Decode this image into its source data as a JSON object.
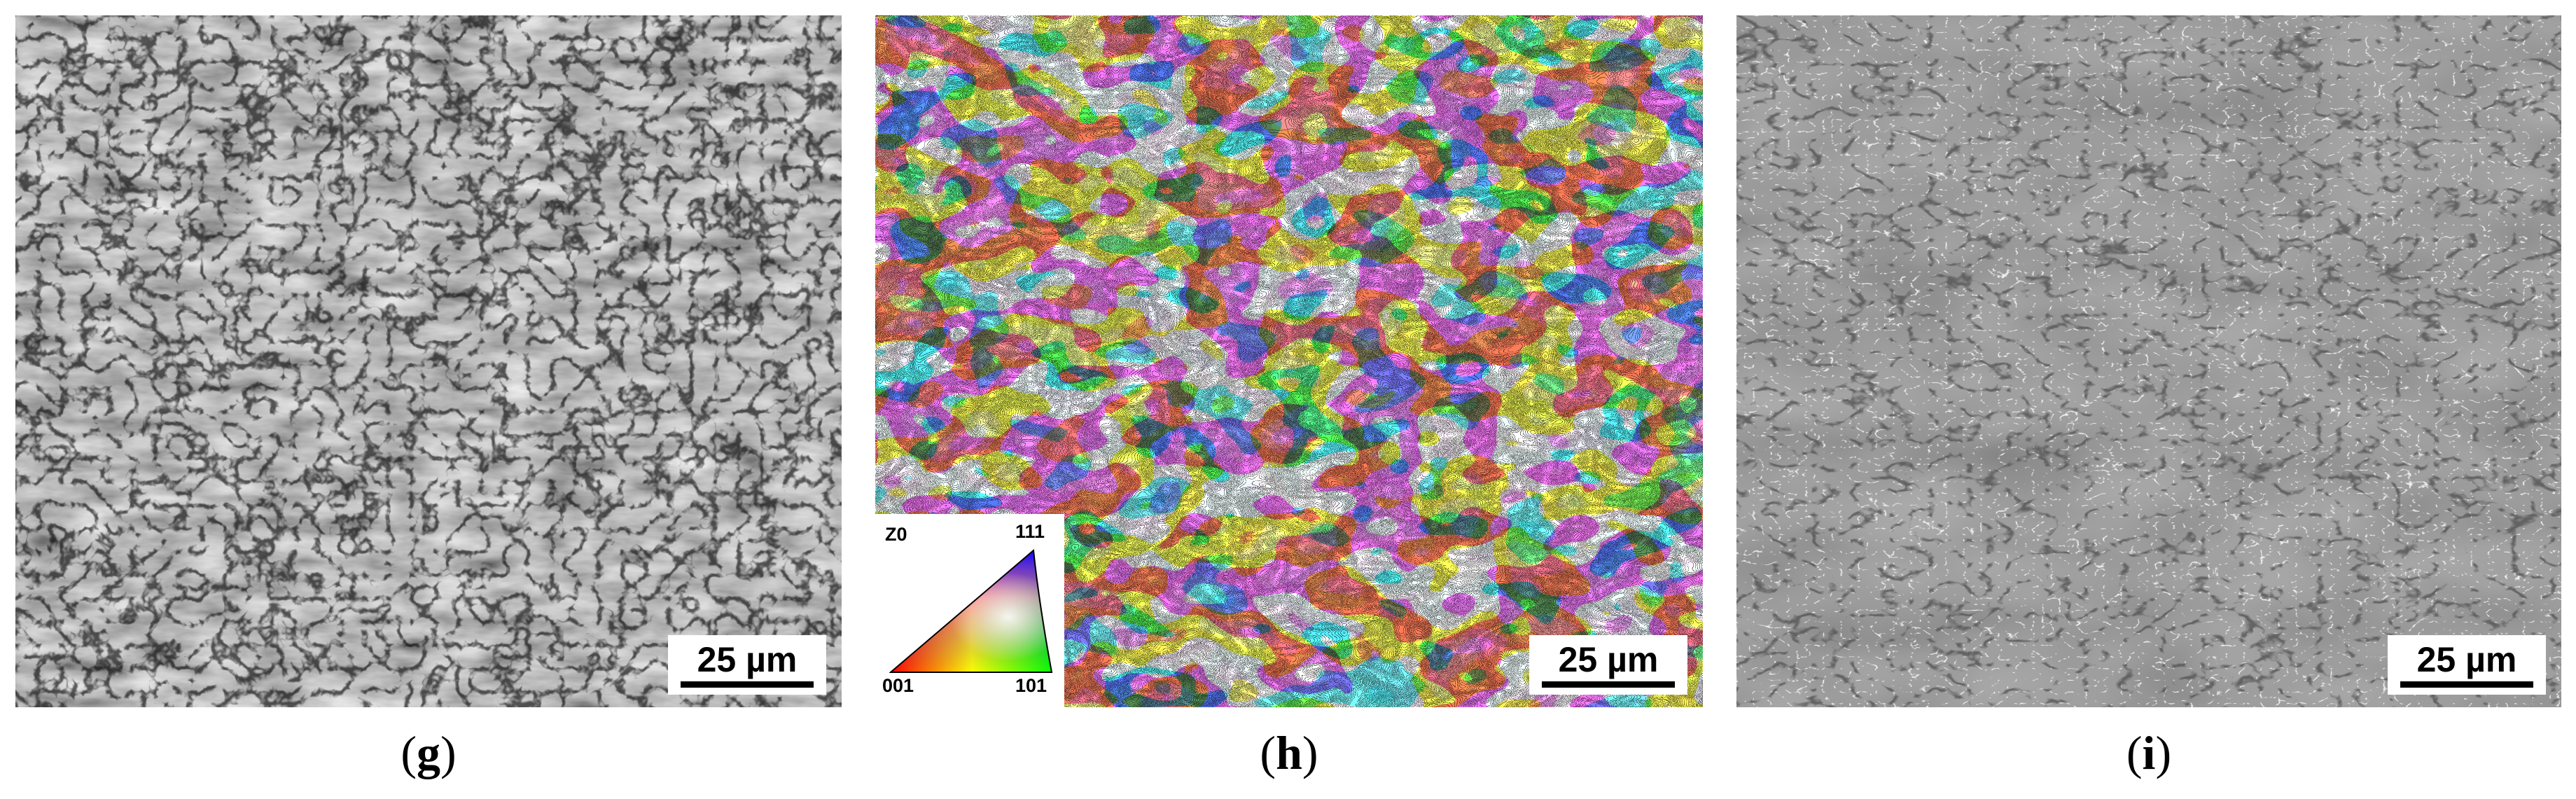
{
  "figure": {
    "panels": [
      {
        "id": "g",
        "caption_open": "(",
        "caption_letter": "g",
        "caption_close": ")",
        "image_type": "grayscale-sem-micrograph",
        "scale_bar_label": "25 µm"
      },
      {
        "id": "h",
        "caption_open": "(",
        "caption_letter": "h",
        "caption_close": ")",
        "image_type": "ebsd-ipf-color-map",
        "scale_bar_label": "25 µm",
        "ipf_key": {
          "axis_label": "Z0",
          "corner_top": "111",
          "corner_left": "001",
          "corner_right": "101",
          "colors": {
            "001": "#ff0000",
            "101": "#00ff00",
            "111": "#0000ff"
          }
        }
      },
      {
        "id": "i",
        "caption_open": "(",
        "caption_letter": "i",
        "caption_close": ")",
        "image_type": "grain-boundary-map",
        "scale_bar_label": "25 µm",
        "colors": {
          "background": "#8a8a8a",
          "high_angle_boundaries": "#1a1a1a",
          "low_angle_boundaries": "#ffffff"
        }
      }
    ]
  }
}
